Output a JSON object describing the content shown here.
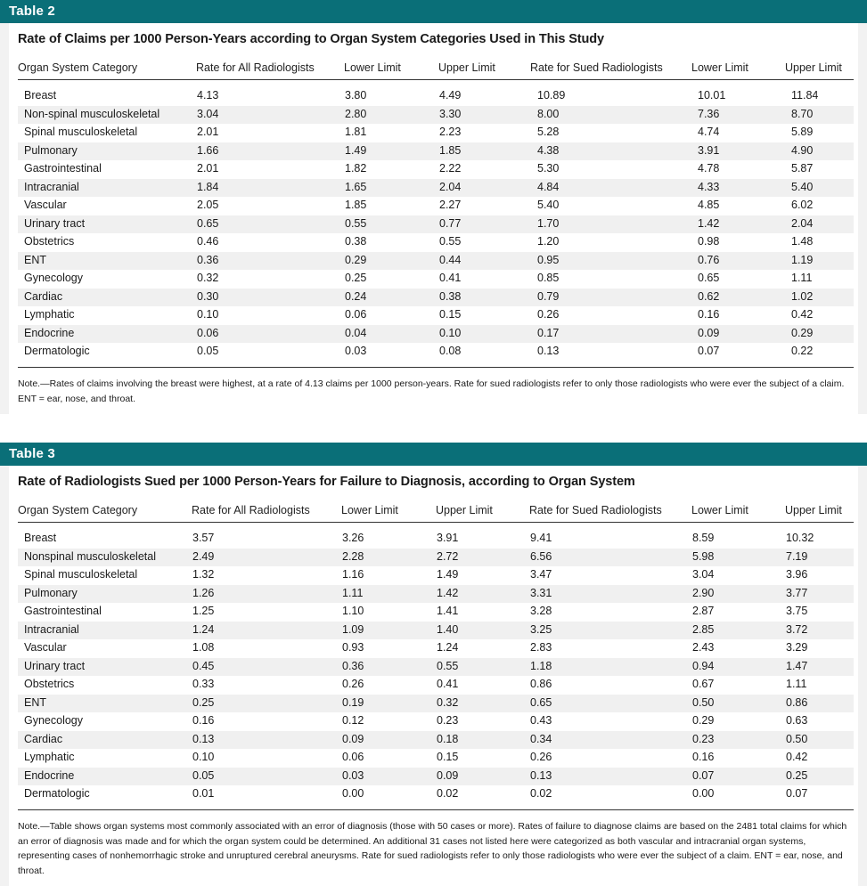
{
  "table2": {
    "label": "Table 2",
    "title": "Rate of Claims per 1000 Person-Years according to Organ System Categories Used in This Study",
    "columns": [
      "Organ System Category",
      "Rate for All Radiologists",
      "Lower Limit",
      "Upper Limit",
      "Rate for Sued Radiologists",
      "Lower Limit",
      "Upper Limit"
    ],
    "rows": [
      [
        "Breast",
        "4.13",
        "3.80",
        "4.49",
        "10.89",
        "10.01",
        "11.84"
      ],
      [
        "Non-spinal musculoskeletal",
        "3.04",
        "2.80",
        "3.30",
        "8.00",
        "7.36",
        "8.70"
      ],
      [
        "Spinal musculoskeletal",
        "2.01",
        "1.81",
        "2.23",
        "5.28",
        "4.74",
        "5.89"
      ],
      [
        "Pulmonary",
        "1.66",
        "1.49",
        "1.85",
        "4.38",
        "3.91",
        "4.90"
      ],
      [
        "Gastrointestinal",
        "2.01",
        "1.82",
        "2.22",
        "5.30",
        "4.78",
        "5.87"
      ],
      [
        "Intracranial",
        "1.84",
        "1.65",
        "2.04",
        "4.84",
        "4.33",
        "5.40"
      ],
      [
        "Vascular",
        "2.05",
        "1.85",
        "2.27",
        "5.40",
        "4.85",
        "6.02"
      ],
      [
        "Urinary tract",
        "0.65",
        "0.55",
        "0.77",
        "1.70",
        "1.42",
        "2.04"
      ],
      [
        "Obstetrics",
        "0.46",
        "0.38",
        "0.55",
        "1.20",
        "0.98",
        "1.48"
      ],
      [
        "ENT",
        "0.36",
        "0.29",
        "0.44",
        "0.95",
        "0.76",
        "1.19"
      ],
      [
        "Gynecology",
        "0.32",
        "0.25",
        "0.41",
        "0.85",
        "0.65",
        "1.11"
      ],
      [
        "Cardiac",
        "0.30",
        "0.24",
        "0.38",
        "0.79",
        "0.62",
        "1.02"
      ],
      [
        "Lymphatic",
        "0.10",
        "0.06",
        "0.15",
        "0.26",
        "0.16",
        "0.42"
      ],
      [
        "Endocrine",
        "0.06",
        "0.04",
        "0.10",
        "0.17",
        "0.09",
        "0.29"
      ],
      [
        "Dermatologic",
        "0.05",
        "0.03",
        "0.08",
        "0.13",
        "0.07",
        "0.22"
      ]
    ],
    "note": "Note.—Rates of claims involving the breast were highest, at a rate of 4.13 claims per 1000 person-years. Rate for sued radiologists refer to only those radiologists who were ever the subject of a claim. ENT = ear, nose, and throat."
  },
  "table3": {
    "label": "Table 3",
    "title": "Rate of Radiologists Sued per 1000 Person-Years for Failure to Diagnosis, according to Organ System",
    "columns": [
      "Organ System Category",
      "Rate for All Radiologists",
      "Lower Limit",
      "Upper Limit",
      "Rate for Sued Radiologists",
      "Lower Limit",
      "Upper Limit"
    ],
    "rows": [
      [
        "Breast",
        "3.57",
        "3.26",
        "3.91",
        "9.41",
        "8.59",
        "10.32"
      ],
      [
        "Nonspinal musculoskeletal",
        "2.49",
        "2.28",
        "2.72",
        "6.56",
        "5.98",
        "7.19"
      ],
      [
        "Spinal musculoskeletal",
        "1.32",
        "1.16",
        "1.49",
        "3.47",
        "3.04",
        "3.96"
      ],
      [
        "Pulmonary",
        "1.26",
        "1.11",
        "1.42",
        "3.31",
        "2.90",
        "3.77"
      ],
      [
        "Gastrointestinal",
        "1.25",
        "1.10",
        "1.41",
        "3.28",
        "2.87",
        "3.75"
      ],
      [
        "Intracranial",
        "1.24",
        "1.09",
        "1.40",
        "3.25",
        "2.85",
        "3.72"
      ],
      [
        "Vascular",
        "1.08",
        "0.93",
        "1.24",
        "2.83",
        "2.43",
        "3.29"
      ],
      [
        "Urinary tract",
        "0.45",
        "0.36",
        "0.55",
        "1.18",
        "0.94",
        "1.47"
      ],
      [
        "Obstetrics",
        "0.33",
        "0.26",
        "0.41",
        "0.86",
        "0.67",
        "1.11"
      ],
      [
        "ENT",
        "0.25",
        "0.19",
        "0.32",
        "0.65",
        "0.50",
        "0.86"
      ],
      [
        "Gynecology",
        "0.16",
        "0.12",
        "0.23",
        "0.43",
        "0.29",
        "0.63"
      ],
      [
        "Cardiac",
        "0.13",
        "0.09",
        "0.18",
        "0.34",
        "0.23",
        "0.50"
      ],
      [
        "Lymphatic",
        "0.10",
        "0.06",
        "0.15",
        "0.26",
        "0.16",
        "0.42"
      ],
      [
        "Endocrine",
        "0.05",
        "0.03",
        "0.09",
        "0.13",
        "0.07",
        "0.25"
      ],
      [
        "Dermatologic",
        "0.01",
        "0.00",
        "0.02",
        "0.02",
        "0.00",
        "0.07"
      ]
    ],
    "note": "Note.—Table shows organ systems most commonly associated with an error of diagnosis (those with 50 cases or more). Rates of failure to diagnose claims are based on the 2481 total claims for which an error of diagnosis was made and for which the organ system could be determined. An additional 31 cases not listed here were categorized as both vascular and intracranial organ systems, representing cases of nonhemorrhagic stroke and unruptured cerebral aneurysms. Rate for sued radiologists refer to only those radiologists who were ever the subject of a claim. ENT = ear, nose, and throat."
  }
}
